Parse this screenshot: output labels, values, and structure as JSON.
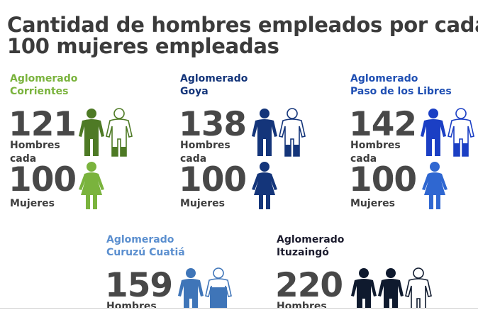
{
  "title": {
    "line1": "Cantidad de hombres empleados por cada",
    "line2": "100 mujeres empleadas"
  },
  "labels": {
    "men_line1": "Hombres",
    "men_line2": "cada",
    "women": "Mujeres"
  },
  "regions": [
    {
      "line1": "Aglomerado",
      "line2": "Corrientes",
      "men": "121",
      "women": "100",
      "name_color": "#7ab33d",
      "man_color": "#4e7a25",
      "woman_color": "#7ab33d",
      "icon_men": 1
    },
    {
      "line1": "Aglomerado",
      "line2": "Goya",
      "men": "138",
      "women": "100",
      "name_color": "#14357a",
      "man_color": "#14357a",
      "woman_color": "#14357a",
      "icon_men": 1
    },
    {
      "line1": "Aglomerado",
      "line2": "Paso de los Libres",
      "men": "142",
      "women": "100",
      "name_color": "#1f4fb3",
      "man_color": "#1b3fc4",
      "woman_color": "#2f67d1",
      "icon_men": 1
    },
    {
      "line1": "Aglomerado",
      "line2": "Curuzú Cuatiá",
      "men": "159",
      "name_color": "#5b8fcf",
      "man_color": "#3f75b8",
      "icon_men": 1
    },
    {
      "line1": "Aglomerado",
      "line2": "Ituzaingó",
      "men": "220",
      "name_color": "#1c1c2e",
      "man_color": "#0f1a2e",
      "icon_men": 2
    }
  ]
}
